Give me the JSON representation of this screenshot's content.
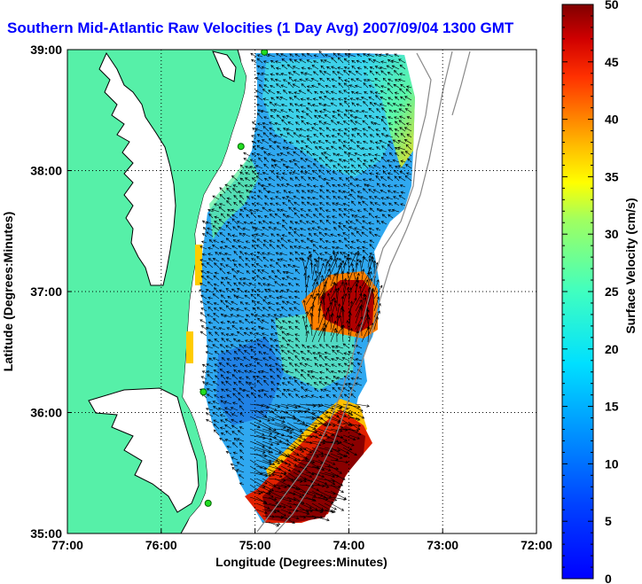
{
  "title": "Southern Mid-Atlantic Raw Velocities (1 Day Avg) 2007/09/04 1300 GMT",
  "x_axis": {
    "label": "Longitude (Degrees:Minutes)",
    "ticks": [
      "77:00",
      "76:00",
      "75:00",
      "74:00",
      "73:00",
      "72:00"
    ]
  },
  "y_axis": {
    "label": "Latitude (Degrees:Minutes)",
    "ticks": [
      "39:00",
      "38:00",
      "37:00",
      "36:00",
      "35:00"
    ]
  },
  "colorbar": {
    "label": "Surface Velocity (cm/s)",
    "ticks": [
      "50",
      "45",
      "40",
      "35",
      "30",
      "25",
      "20",
      "15",
      "10",
      "5",
      "0"
    ],
    "range": [
      0,
      50
    ],
    "colormap": "jet"
  },
  "colors": {
    "land": "#56F0A8",
    "title": "#0000ff",
    "station_marker": "#22dd22"
  },
  "map_extent": {
    "lon": [
      -77,
      -72
    ],
    "lat": [
      35,
      39
    ]
  },
  "grid": true,
  "stations": [
    {
      "lon": -74.9,
      "lat": 38.98
    },
    {
      "lon": -75.15,
      "lat": 38.2
    },
    {
      "lon": -75.55,
      "lat": 36.17
    },
    {
      "lon": -75.5,
      "lat": 35.25
    }
  ],
  "velocity_regions": [
    {
      "name": "bulk field",
      "speed_cm_s": 12
    },
    {
      "name": "north edge",
      "speed_cm_s": 20
    },
    {
      "name": "central jet",
      "speed_cm_s": 48
    },
    {
      "name": "gulf stream south",
      "speed_cm_s": 50
    }
  ]
}
